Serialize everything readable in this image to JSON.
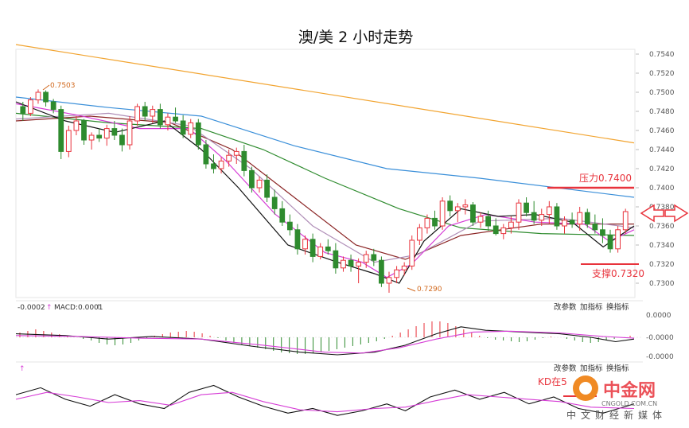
{
  "title": "澳/美 2 小时走势",
  "chart_data": {
    "type": "candlestick",
    "main": {
      "price_ticks": [
        "0.7540",
        "0.7520",
        "0.7500",
        "0.7480",
        "0.7460",
        "0.7440",
        "0.7420",
        "0.7400",
        "0.7380",
        "0.7360",
        "0.7340",
        "0.7320",
        "0.7300"
      ],
      "ylim": [
        0.7285,
        0.7545
      ],
      "high_label": "0.7503",
      "low_label": "0.7290",
      "resistance": {
        "label": "压力0.7400",
        "value": 0.74
      },
      "support": {
        "label": "支撑0.7320",
        "value": 0.732
      },
      "candles": [
        [
          0.7485,
          0.749,
          0.747,
          0.7478
        ],
        [
          0.7478,
          0.7495,
          0.7475,
          0.7492
        ],
        [
          0.7492,
          0.7503,
          0.7488,
          0.75
        ],
        [
          0.75,
          0.7502,
          0.7485,
          0.749
        ],
        [
          0.749,
          0.7493,
          0.7478,
          0.7482
        ],
        [
          0.7482,
          0.7486,
          0.743,
          0.7438
        ],
        [
          0.7438,
          0.7465,
          0.7432,
          0.746
        ],
        [
          0.746,
          0.7475,
          0.7455,
          0.747
        ],
        [
          0.747,
          0.7472,
          0.7445,
          0.745
        ],
        [
          0.745,
          0.7458,
          0.744,
          0.7455
        ],
        [
          0.7455,
          0.7462,
          0.7448,
          0.7452
        ],
        [
          0.7452,
          0.7466,
          0.7444,
          0.7462
        ],
        [
          0.7462,
          0.747,
          0.745,
          0.7455
        ],
        [
          0.7455,
          0.7462,
          0.7438,
          0.7445
        ],
        [
          0.7445,
          0.7475,
          0.744,
          0.747
        ],
        [
          0.747,
          0.7488,
          0.7465,
          0.7485
        ],
        [
          0.7485,
          0.749,
          0.747,
          0.7475
        ],
        [
          0.7475,
          0.7486,
          0.7468,
          0.7482
        ],
        [
          0.7482,
          0.7488,
          0.7462,
          0.7466
        ],
        [
          0.7466,
          0.7478,
          0.746,
          0.7474
        ],
        [
          0.7474,
          0.7484,
          0.7468,
          0.747
        ],
        [
          0.747,
          0.7476,
          0.7452,
          0.7456
        ],
        [
          0.7456,
          0.7472,
          0.7452,
          0.7468
        ],
        [
          0.7468,
          0.7472,
          0.744,
          0.7445
        ],
        [
          0.7445,
          0.745,
          0.742,
          0.7425
        ],
        [
          0.7425,
          0.7435,
          0.7415,
          0.742
        ],
        [
          0.742,
          0.7432,
          0.7415,
          0.7428
        ],
        [
          0.7428,
          0.744,
          0.7422,
          0.7434
        ],
        [
          0.7434,
          0.7442,
          0.7425,
          0.7438
        ],
        [
          0.7438,
          0.7445,
          0.7412,
          0.7418
        ],
        [
          0.7418,
          0.7422,
          0.7395,
          0.74
        ],
        [
          0.74,
          0.7412,
          0.7395,
          0.7408
        ],
        [
          0.7408,
          0.7414,
          0.7385,
          0.739
        ],
        [
          0.739,
          0.7398,
          0.7372,
          0.7378
        ],
        [
          0.7378,
          0.7386,
          0.736,
          0.7364
        ],
        [
          0.7364,
          0.7372,
          0.735,
          0.7356
        ],
        [
          0.7356,
          0.7362,
          0.733,
          0.7336
        ],
        [
          0.7336,
          0.735,
          0.733,
          0.7346
        ],
        [
          0.7346,
          0.7352,
          0.7322,
          0.7328
        ],
        [
          0.7328,
          0.7342,
          0.7325,
          0.7338
        ],
        [
          0.7338,
          0.7346,
          0.733,
          0.7334
        ],
        [
          0.7334,
          0.7342,
          0.731,
          0.7316
        ],
        [
          0.7316,
          0.7328,
          0.7312,
          0.7324
        ],
        [
          0.7324,
          0.733,
          0.7312,
          0.7318
        ],
        [
          0.7318,
          0.7326,
          0.73,
          0.7322
        ],
        [
          0.7322,
          0.7334,
          0.7316,
          0.733
        ],
        [
          0.733,
          0.7336,
          0.7318,
          0.7324
        ],
        [
          0.7324,
          0.7328,
          0.7296,
          0.73
        ],
        [
          0.73,
          0.7312,
          0.729,
          0.7306
        ],
        [
          0.7306,
          0.7318,
          0.73,
          0.7314
        ],
        [
          0.7314,
          0.7322,
          0.7308,
          0.7318
        ],
        [
          0.7318,
          0.735,
          0.7314,
          0.7345
        ],
        [
          0.7345,
          0.7362,
          0.734,
          0.7358
        ],
        [
          0.7358,
          0.7372,
          0.7352,
          0.7368
        ],
        [
          0.7368,
          0.7376,
          0.7356,
          0.736
        ],
        [
          0.736,
          0.739,
          0.7356,
          0.7386
        ],
        [
          0.7386,
          0.7392,
          0.737,
          0.7376
        ],
        [
          0.7376,
          0.7384,
          0.7364,
          0.738
        ],
        [
          0.738,
          0.7388,
          0.7372,
          0.7382
        ],
        [
          0.7382,
          0.7385,
          0.736,
          0.7364
        ],
        [
          0.7364,
          0.7374,
          0.7358,
          0.737
        ],
        [
          0.737,
          0.7376,
          0.7355,
          0.736
        ],
        [
          0.736,
          0.7368,
          0.735,
          0.7352
        ],
        [
          0.7352,
          0.7362,
          0.7346,
          0.7358
        ],
        [
          0.7358,
          0.737,
          0.7352,
          0.7364
        ],
        [
          0.7364,
          0.7388,
          0.7356,
          0.7384
        ],
        [
          0.7384,
          0.739,
          0.737,
          0.7374
        ],
        [
          0.7374,
          0.7386,
          0.7362,
          0.7366
        ],
        [
          0.7366,
          0.7378,
          0.736,
          0.7372
        ],
        [
          0.7372,
          0.7386,
          0.7362,
          0.738
        ],
        [
          0.738,
          0.7384,
          0.7356,
          0.736
        ],
        [
          0.736,
          0.737,
          0.7352,
          0.7366
        ],
        [
          0.7366,
          0.7374,
          0.7358,
          0.7362
        ],
        [
          0.7362,
          0.738,
          0.7355,
          0.7374
        ],
        [
          0.7374,
          0.7378,
          0.7358,
          0.7362
        ],
        [
          0.7362,
          0.7372,
          0.7352,
          0.7356
        ],
        [
          0.7356,
          0.7368,
          0.7342,
          0.735
        ],
        [
          0.735,
          0.7356,
          0.7332,
          0.7336
        ],
        [
          0.7336,
          0.736,
          0.7332,
          0.7356
        ],
        [
          0.7356,
          0.7378,
          0.7352,
          0.7375
        ]
      ],
      "ma_lines": [
        {
          "color": "#f2a430",
          "start": 0.755,
          "end": 0.7447
        },
        {
          "color": "#3a8fd9",
          "points": [
            [
              0,
              0.7495
            ],
            [
              0.15,
              0.7484
            ],
            [
              0.3,
              0.7475
            ],
            [
              0.45,
              0.7444
            ],
            [
              0.6,
              0.742
            ],
            [
              0.75,
              0.741
            ],
            [
              1,
              0.739
            ]
          ]
        },
        {
          "color": "#2e8b2e",
          "points": [
            [
              0,
              0.7478
            ],
            [
              0.15,
              0.7468
            ],
            [
              0.3,
              0.7462
            ],
            [
              0.4,
              0.744
            ],
            [
              0.5,
              0.741
            ],
            [
              0.62,
              0.7378
            ],
            [
              0.72,
              0.7358
            ],
            [
              0.85,
              0.7352
            ],
            [
              1,
              0.735
            ]
          ]
        },
        {
          "color": "#8b2525",
          "points": [
            [
              0,
              0.747
            ],
            [
              0.12,
              0.7475
            ],
            [
              0.25,
              0.7468
            ],
            [
              0.35,
              0.744
            ],
            [
              0.45,
              0.739
            ],
            [
              0.55,
              0.734
            ],
            [
              0.63,
              0.7325
            ],
            [
              0.72,
              0.735
            ],
            [
              0.85,
              0.7362
            ],
            [
              1,
              0.7362
            ]
          ]
        },
        {
          "color": "#b08fb8",
          "points": [
            [
              0,
              0.7472
            ],
            [
              0.15,
              0.7478
            ],
            [
              0.28,
              0.7465
            ],
            [
              0.38,
              0.742
            ],
            [
              0.48,
              0.736
            ],
            [
              0.58,
              0.7322
            ],
            [
              0.65,
              0.733
            ],
            [
              0.75,
              0.7365
            ],
            [
              0.88,
              0.7368
            ],
            [
              1,
              0.7358
            ]
          ]
        },
        {
          "color": "#d63cd6",
          "points": [
            [
              0,
              0.7488
            ],
            [
              0.1,
              0.7476
            ],
            [
              0.2,
              0.7462
            ],
            [
              0.28,
              0.7462
            ],
            [
              0.34,
              0.7428
            ],
            [
              0.42,
              0.7372
            ],
            [
              0.5,
              0.7332
            ],
            [
              0.56,
              0.7322
            ],
            [
              0.6,
              0.7306
            ],
            [
              0.64,
              0.732
            ],
            [
              0.7,
              0.736
            ],
            [
              0.76,
              0.7372
            ],
            [
              0.84,
              0.7364
            ],
            [
              0.92,
              0.7362
            ],
            [
              0.96,
              0.7344
            ],
            [
              1,
              0.7356
            ]
          ]
        },
        {
          "color": "#111111",
          "points": [
            [
              0,
              0.749
            ],
            [
              0.08,
              0.747
            ],
            [
              0.16,
              0.7458
            ],
            [
              0.24,
              0.747
            ],
            [
              0.3,
              0.744
            ],
            [
              0.36,
              0.74
            ],
            [
              0.44,
              0.734
            ],
            [
              0.52,
              0.7322
            ],
            [
              0.58,
              0.731
            ],
            [
              0.62,
              0.73
            ],
            [
              0.66,
              0.7344
            ],
            [
              0.72,
              0.7378
            ],
            [
              0.78,
              0.737
            ],
            [
              0.84,
              0.7372
            ],
            [
              0.9,
              0.7364
            ],
            [
              0.95,
              0.7338
            ],
            [
              1,
              0.736
            ]
          ]
        }
      ]
    },
    "macd": {
      "header_left": "-0.0002",
      "header_right": "MACD:0.0001",
      "ticks": [
        "0.0000",
        "-0.0000",
        "-0.0000"
      ],
      "histogram": [
        0.3,
        0.4,
        0.5,
        0.4,
        0.3,
        0.2,
        0.1,
        0.0,
        -0.1,
        -0.2,
        -0.35,
        -0.45,
        -0.5,
        -0.45,
        -0.35,
        -0.2,
        -0.05,
        0.1,
        0.2,
        0.3,
        0.35,
        0.4,
        0.35,
        0.25,
        0.1,
        -0.05,
        -0.2,
        -0.35,
        -0.45,
        -0.55,
        -0.65,
        -0.75,
        -0.85,
        -0.95,
        -1.0,
        -1.05,
        -1.05,
        -1.0,
        -0.95,
        -0.85,
        -0.75,
        -0.65,
        -0.55,
        -0.45,
        -0.35,
        -0.25,
        -0.1,
        0.1,
        0.3,
        0.5,
        0.7,
        0.9,
        1.0,
        1.0,
        0.9,
        0.7,
        0.5,
        0.3,
        0.1,
        -0.05,
        -0.15,
        -0.2,
        -0.25,
        -0.3,
        -0.25,
        -0.15,
        -0.05,
        0.05,
        0.0,
        -0.1,
        -0.2,
        -0.3,
        -0.35,
        -0.3,
        -0.2,
        -0.1,
        0.0,
        0.1
      ],
      "dif": [
        [
          0,
          0.2
        ],
        [
          0.08,
          0.1
        ],
        [
          0.15,
          -0.1
        ],
        [
          0.22,
          0.05
        ],
        [
          0.3,
          -0.1
        ],
        [
          0.38,
          -0.5
        ],
        [
          0.46,
          -0.85
        ],
        [
          0.52,
          -1.0
        ],
        [
          0.58,
          -0.85
        ],
        [
          0.63,
          -0.45
        ],
        [
          0.68,
          0.2
        ],
        [
          0.72,
          0.6
        ],
        [
          0.76,
          0.4
        ],
        [
          0.82,
          0.3
        ],
        [
          0.88,
          0.2
        ],
        [
          0.93,
          0.0
        ],
        [
          0.97,
          -0.25
        ],
        [
          1,
          -0.1
        ]
      ],
      "dea": [
        [
          0,
          0.1
        ],
        [
          0.1,
          0.05
        ],
        [
          0.2,
          -0.05
        ],
        [
          0.3,
          -0.1
        ],
        [
          0.4,
          -0.45
        ],
        [
          0.5,
          -0.85
        ],
        [
          0.56,
          -0.9
        ],
        [
          0.62,
          -0.6
        ],
        [
          0.68,
          -0.1
        ],
        [
          0.74,
          0.3
        ],
        [
          0.8,
          0.35
        ],
        [
          0.88,
          0.25
        ],
        [
          0.95,
          0.05
        ],
        [
          1,
          -0.05
        ]
      ]
    },
    "kd": {
      "annotation": "KD在5",
      "k": [
        [
          0,
          0.55
        ],
        [
          0.04,
          0.7
        ],
        [
          0.08,
          0.45
        ],
        [
          0.12,
          0.3
        ],
        [
          0.16,
          0.55
        ],
        [
          0.2,
          0.35
        ],
        [
          0.24,
          0.25
        ],
        [
          0.28,
          0.6
        ],
        [
          0.32,
          0.75
        ],
        [
          0.36,
          0.5
        ],
        [
          0.4,
          0.3
        ],
        [
          0.44,
          0.15
        ],
        [
          0.48,
          0.25
        ],
        [
          0.52,
          0.1
        ],
        [
          0.56,
          0.2
        ],
        [
          0.6,
          0.35
        ],
        [
          0.63,
          0.2
        ],
        [
          0.67,
          0.5
        ],
        [
          0.71,
          0.65
        ],
        [
          0.75,
          0.45
        ],
        [
          0.79,
          0.6
        ],
        [
          0.83,
          0.35
        ],
        [
          0.87,
          0.5
        ],
        [
          0.91,
          0.25
        ],
        [
          0.95,
          0.15
        ],
        [
          1,
          0.35
        ]
      ],
      "d": [
        [
          0,
          0.45
        ],
        [
          0.05,
          0.6
        ],
        [
          0.1,
          0.5
        ],
        [
          0.15,
          0.38
        ],
        [
          0.2,
          0.42
        ],
        [
          0.25,
          0.32
        ],
        [
          0.3,
          0.55
        ],
        [
          0.35,
          0.6
        ],
        [
          0.4,
          0.4
        ],
        [
          0.46,
          0.22
        ],
        [
          0.52,
          0.18
        ],
        [
          0.58,
          0.25
        ],
        [
          0.63,
          0.28
        ],
        [
          0.68,
          0.42
        ],
        [
          0.73,
          0.55
        ],
        [
          0.78,
          0.5
        ],
        [
          0.83,
          0.45
        ],
        [
          0.88,
          0.4
        ],
        [
          0.93,
          0.28
        ],
        [
          1,
          0.25
        ]
      ]
    }
  },
  "toolbar": {
    "change_params": "改参数",
    "add_indicator": "加指标",
    "switch_indicator": "换指标"
  },
  "watermark": {
    "logo": "中金网",
    "site": "CNGOLD.COM.CN",
    "tagline": "中文财经新媒体"
  },
  "colors": {
    "up": "#e8333c",
    "down": "#2e8b2e",
    "annotation": "#e8333c"
  }
}
